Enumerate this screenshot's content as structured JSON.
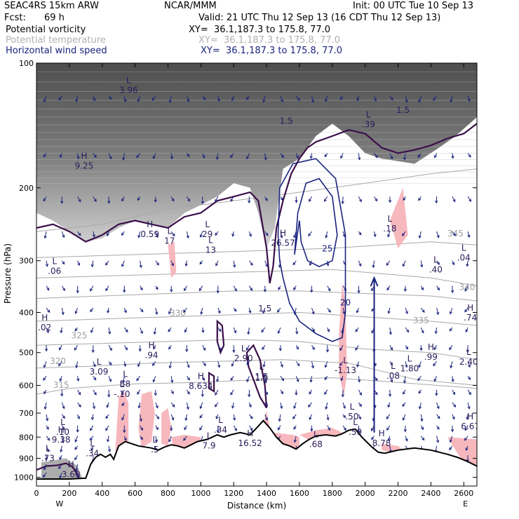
{
  "header": {
    "model": "SEAC4RS 15km ARW",
    "center": "NCAR/MMM",
    "init": "Init: 00 UTC Tue 10 Sep 13",
    "fcst_label": "Fcst:",
    "fcst_value": "69 h",
    "valid": "Valid: 21 UTC Thu 12 Sep 13 (16 CDT Thu 12 Sep 13)"
  },
  "legend": [
    {
      "name": "Potential vorticity",
      "xy": "XY=  36.1,187.3 to 175.8, 77.0",
      "color": "#000000"
    },
    {
      "name": "Potential temperature",
      "xy": "XY=  36.1,187.3 to 175.8, 77.0",
      "color": "#b0b0b0"
    },
    {
      "name": "Horizontal wind speed",
      "xy": "XY=  36.1,187.3 to 175.8, 77.0",
      "color": "#1a237e"
    }
  ],
  "colors": {
    "pv_shading": "#555555",
    "pv_contour": "#3b0f4a",
    "theta": "#a8a8a8",
    "wind": "#1a237e",
    "pink": "#f7b4b9",
    "terrain": "#000000"
  },
  "chart_data": {
    "type": "cross-section",
    "xlabel": "Distance (km)",
    "ylabel": "Pressure (hPa)",
    "xlim": [
      0,
      2680
    ],
    "ylim": [
      1050,
      100
    ],
    "y_scale": "log",
    "x_ticks": [
      0,
      200,
      400,
      600,
      800,
      1000,
      1200,
      1400,
      1600,
      1800,
      2000,
      2200,
      2400,
      2600
    ],
    "x_tick_labels": [
      "0",
      "200",
      "400",
      "600",
      "800",
      "1000",
      "1200",
      "1400",
      "1600",
      "1800",
      "2000",
      "2200",
      "2400",
      "2600"
    ],
    "y_ticks": [
      100,
      200,
      300,
      400,
      500,
      600,
      700,
      800,
      900,
      1000
    ],
    "y_tick_labels": [
      "100",
      "200",
      "300",
      "400",
      "500",
      "600",
      "700",
      "800",
      "900",
      "1000"
    ],
    "end_labels": [
      {
        "text": "W",
        "x": 140
      },
      {
        "text": "E",
        "x": 2610
      }
    ],
    "terrain": [
      [
        0,
        1010
      ],
      [
        100,
        1010
      ],
      [
        200,
        1010
      ],
      [
        300,
        1005
      ],
      [
        330,
        930
      ],
      [
        360,
        895
      ],
      [
        390,
        880
      ],
      [
        420,
        895
      ],
      [
        450,
        880
      ],
      [
        470,
        905
      ],
      [
        500,
        840
      ],
      [
        540,
        820
      ],
      [
        580,
        830
      ],
      [
        620,
        840
      ],
      [
        660,
        845
      ],
      [
        700,
        850
      ],
      [
        740,
        860
      ],
      [
        780,
        845
      ],
      [
        820,
        835
      ],
      [
        860,
        840
      ],
      [
        900,
        850
      ],
      [
        940,
        835
      ],
      [
        980,
        820
      ],
      [
        1040,
        810
      ],
      [
        1100,
        790
      ],
      [
        1140,
        800
      ],
      [
        1180,
        790
      ],
      [
        1240,
        780
      ],
      [
        1300,
        790
      ],
      [
        1340,
        760
      ],
      [
        1380,
        730
      ],
      [
        1420,
        760
      ],
      [
        1460,
        800
      ],
      [
        1500,
        830
      ],
      [
        1540,
        840
      ],
      [
        1580,
        855
      ],
      [
        1620,
        830
      ],
      [
        1660,
        810
      ],
      [
        1700,
        795
      ],
      [
        1760,
        790
      ],
      [
        1820,
        795
      ],
      [
        1860,
        785
      ],
      [
        1900,
        770
      ],
      [
        1940,
        765
      ],
      [
        1980,
        800
      ],
      [
        2040,
        845
      ],
      [
        2080,
        870
      ],
      [
        2120,
        875
      ],
      [
        2200,
        860
      ],
      [
        2300,
        850
      ],
      [
        2400,
        860
      ],
      [
        2500,
        880
      ],
      [
        2560,
        895
      ],
      [
        2620,
        915
      ],
      [
        2680,
        940
      ]
    ],
    "theta_contours": [
      {
        "value": 315,
        "points": [
          [
            0,
            630
          ],
          [
            200,
            610
          ],
          [
            600,
            595
          ],
          [
            1000,
            590
          ],
          [
            1400,
            580
          ],
          [
            1800,
            575
          ],
          [
            2200,
            590
          ],
          [
            2680,
            610
          ]
        ],
        "label": "315",
        "label_at": [
          150,
          608
        ]
      },
      {
        "value": 320,
        "points": [
          [
            0,
            545
          ],
          [
            300,
            540
          ],
          [
            700,
            530
          ],
          [
            1100,
            525
          ],
          [
            1500,
            520
          ],
          [
            1900,
            530
          ],
          [
            2300,
            580
          ],
          [
            2680,
            600
          ]
        ],
        "label": "320",
        "label_at": [
          130,
          533
        ]
      },
      {
        "value": 325,
        "points": [
          [
            0,
            480
          ],
          [
            400,
            475
          ],
          [
            800,
            470
          ],
          [
            1200,
            465
          ],
          [
            1600,
            470
          ],
          [
            2000,
            490
          ],
          [
            2400,
            500
          ],
          [
            2680,
            520
          ]
        ],
        "label": "325",
        "label_at": [
          260,
          462
        ]
      },
      {
        "value": 330,
        "points": [
          [
            0,
            420
          ],
          [
            400,
            415
          ],
          [
            800,
            410
          ],
          [
            1200,
            405
          ],
          [
            1600,
            400
          ],
          [
            2000,
            410
          ],
          [
            2400,
            420
          ],
          [
            2680,
            430
          ]
        ],
        "label": "330",
        "label_at": [
          860,
          408
        ]
      },
      {
        "value": 335,
        "points": [
          [
            0,
            370
          ],
          [
            400,
            365
          ],
          [
            800,
            360
          ],
          [
            1200,
            355
          ],
          [
            1600,
            355
          ],
          [
            2000,
            360
          ],
          [
            2400,
            365
          ],
          [
            2680,
            375
          ]
        ],
        "label": "335",
        "label_at": [
          2340,
          425
        ]
      },
      {
        "value": 340,
        "points": [
          [
            0,
            330
          ],
          [
            600,
            325
          ],
          [
            1200,
            320
          ],
          [
            1800,
            315
          ],
          [
            2400,
            330
          ],
          [
            2680,
            345
          ]
        ],
        "label": "340",
        "label_at": [
          2620,
          353
        ]
      },
      {
        "value": 345,
        "points": [
          [
            0,
            295
          ],
          [
            600,
            290
          ],
          [
            1200,
            285
          ],
          [
            1800,
            280
          ],
          [
            2400,
            270
          ],
          [
            2680,
            275
          ]
        ],
        "label": "345",
        "label_at": [
          2550,
          262
        ]
      },
      {
        "value": 350,
        "points": [
          [
            0,
            255
          ],
          [
            400,
            245
          ],
          [
            800,
            225
          ],
          [
            1200,
            215
          ],
          [
            1600,
            205
          ],
          [
            2000,
            195
          ],
          [
            2400,
            185
          ],
          [
            2680,
            180
          ]
        ],
        "label": "350",
        "label_at": [
          750,
          197
        ]
      }
    ],
    "pv_extrema": [
      {
        "type": "H",
        "value": "9.25",
        "x": 290,
        "y": 180
      },
      {
        "type": "L",
        "value": "3.96",
        "x": 560,
        "y": 118
      },
      {
        "type": "H",
        "value": "0.59",
        "x": 690,
        "y": 263
      },
      {
        "type": "L",
        "value": "17",
        "x": 810,
        "y": 273
      },
      {
        "type": "L",
        "value": ".06",
        "x": 110,
        "y": 323
      },
      {
        "type": "L",
        "value": "29",
        "x": 1040,
        "y": 263
      },
      {
        "type": "L",
        "value": "13",
        "x": 1060,
        "y": 287
      },
      {
        "type": "H",
        "value": "26.57",
        "x": 1500,
        "y": 276
      },
      {
        "type": "H",
        "value": ".02",
        "x": 50,
        "y": 442
      },
      {
        "type": "H",
        "value": ".94",
        "x": 700,
        "y": 515
      },
      {
        "type": "L",
        "value": "2.90",
        "x": 1260,
        "y": 525
      },
      {
        "type": "L",
        "value": "3.09",
        "x": 380,
        "y": 565
      },
      {
        "type": "L",
        "value": "58",
        "x": 540,
        "y": 605
      },
      {
        "type": "L",
        "value": "-.10",
        "x": 520,
        "y": 640
      },
      {
        "type": "H",
        "value": "8.634",
        "x": 1000,
        "y": 612
      },
      {
        "type": "L",
        "value": "1.5",
        "x": 1370,
        "y": 580
      },
      {
        "type": "L",
        "value": "-1.13",
        "x": 1880,
        "y": 560
      },
      {
        "type": "L",
        "value": "1.80",
        "x": 2270,
        "y": 555
      },
      {
        "type": "L",
        "value": ".08",
        "x": 2170,
        "y": 578
      },
      {
        "type": "H",
        "value": ".99",
        "x": 2400,
        "y": 520
      },
      {
        "type": "L",
        "value": "2.40",
        "x": 2630,
        "y": 535
      },
      {
        "type": "L",
        "value": ".18",
        "x": 2150,
        "y": 255
      },
      {
        "type": "L",
        "value": ".40",
        "x": 2430,
        "y": 320
      },
      {
        "type": "L",
        "value": ".04",
        "x": 2600,
        "y": 300
      },
      {
        "type": "H",
        "value": ".74",
        "x": 2640,
        "y": 418
      },
      {
        "type": "L",
        "value": ".39",
        "x": 2020,
        "y": 143
      },
      {
        "type": "L",
        "value": ".50",
        "x": 1920,
        "y": 725
      },
      {
        "type": "L",
        "value": ".34",
        "x": 1120,
        "y": 780
      },
      {
        "type": "L",
        "value": ".59",
        "x": 1940,
        "y": 790
      },
      {
        "type": "L",
        "value": ".10",
        "x": 160,
        "y": 790
      },
      {
        "type": "H",
        "value": "9.38",
        "x": 150,
        "y": 825
      },
      {
        "type": "H",
        "value": "6.67",
        "x": 2640,
        "y": 765
      },
      {
        "type": "H",
        "value": "8.78",
        "x": 2100,
        "y": 840
      },
      {
        "type": "H",
        "value": "16.52",
        "x": 1300,
        "y": 840
      },
      {
        "type": "L",
        "value": "7.9",
        "x": 1050,
        "y": 853
      },
      {
        "type": "L",
        "value": ".68",
        "x": 1700,
        "y": 845
      },
      {
        "type": "L",
        "value": ".5",
        "x": 720,
        "y": 870
      },
      {
        "type": "L",
        "value": ".34",
        "x": 340,
        "y": 890
      },
      {
        "type": "L",
        "value": ".73",
        "x": 70,
        "y": 915
      },
      {
        "type": "H",
        "value": "3.60",
        "x": 210,
        "y": 1000
      }
    ],
    "pv_contour_labels": [
      {
        "text": "1.5",
        "x": 1520,
        "y": 140
      },
      {
        "text": "1.5",
        "x": 2230,
        "y": 132
      },
      {
        "text": "1.5",
        "x": 1390,
        "y": 398
      },
      {
        "text": "1.5",
        "x": 1370,
        "y": 585
      }
    ],
    "wind_speed_labels": [
      {
        "text": "25",
        "x": 1770,
        "y": 285
      },
      {
        "text": "20",
        "x": 1880,
        "y": 385
      }
    ],
    "wind_speed_contours": [
      {
        "value": 25,
        "points": [
          [
            1570,
            290
          ],
          [
            1590,
            230
          ],
          [
            1640,
            195
          ],
          [
            1720,
            190
          ],
          [
            1800,
            210
          ],
          [
            1830,
            260
          ],
          [
            1800,
            300
          ],
          [
            1720,
            310
          ],
          [
            1650,
            300
          ],
          [
            1610,
            270
          ],
          [
            1600,
            240
          ]
        ]
      },
      {
        "value": 20,
        "points": [
          [
            1480,
            300
          ],
          [
            1470,
            260
          ],
          [
            1480,
            200
          ],
          [
            1560,
            175
          ],
          [
            1700,
            170
          ],
          [
            1820,
            190
          ],
          [
            1880,
            260
          ],
          [
            1880,
            400
          ],
          [
            1860,
            460
          ],
          [
            1800,
            470
          ],
          [
            1700,
            450
          ],
          [
            1600,
            420
          ],
          [
            1540,
            380
          ],
          [
            1500,
            330
          ]
        ]
      }
    ]
  }
}
